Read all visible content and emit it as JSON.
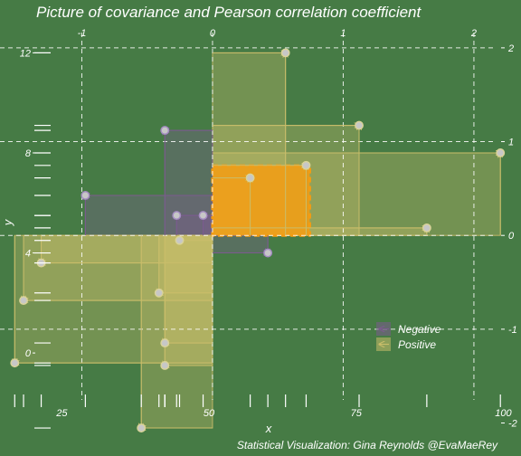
{
  "chart_data": {
    "type": "scatter",
    "title": "Picture of covariance and Pearson correlation coefficient",
    "caption": "Statistical Visualization: Gina Reynolds @EvaMaeRey",
    "xlabel": "x",
    "ylabel": "y",
    "xlim": [
      14.5,
      103
    ],
    "ylim": [
      -2.6,
      13.1
    ],
    "x_ticks": [
      25,
      50,
      75,
      100
    ],
    "y_ticks": [
      0,
      4,
      8,
      12
    ],
    "z_x_ticks": [
      -1,
      0,
      1,
      2
    ],
    "z_y_ticks": [
      -2,
      -1,
      0,
      1,
      2
    ],
    "mean_x": 50.6,
    "mean_y": 4.7,
    "sd_x": 22.2,
    "sd_y": 3.75,
    "points": [
      {
        "x": 63,
        "y": 12.0
      },
      {
        "x": 75.5,
        "y": 9.1
      },
      {
        "x": 99.5,
        "y": 8.0
      },
      {
        "x": 66.5,
        "y": 7.5
      },
      {
        "x": 57,
        "y": 7.0
      },
      {
        "x": 87,
        "y": 5.0
      },
      {
        "x": 60,
        "y": 4.0
      },
      {
        "x": 42.5,
        "y": 8.9
      },
      {
        "x": 29,
        "y": 6.3
      },
      {
        "x": 44.5,
        "y": 5.5
      },
      {
        "x": 49,
        "y": 5.5
      },
      {
        "x": 45,
        "y": 4.5
      },
      {
        "x": 21.5,
        "y": 3.6
      },
      {
        "x": 41.5,
        "y": 2.4
      },
      {
        "x": 18.5,
        "y": 2.1
      },
      {
        "x": 42.5,
        "y": 0.4
      },
      {
        "x": 17,
        "y": -0.4
      },
      {
        "x": 42.5,
        "y": -0.5
      },
      {
        "x": 38.5,
        "y": -3.0
      }
    ],
    "legend": {
      "position": "bottom-right",
      "entries": [
        {
          "label": "Negative",
          "color": "#7b5b8e"
        },
        {
          "label": "Positive",
          "color": "#c9bd6a"
        }
      ]
    },
    "colors": {
      "background": "#467b45",
      "negative": "#7b5b8e",
      "positive": "#c9bd6a",
      "correlation": "#f39c12",
      "points": "#c7c7c7"
    },
    "grid": false
  }
}
